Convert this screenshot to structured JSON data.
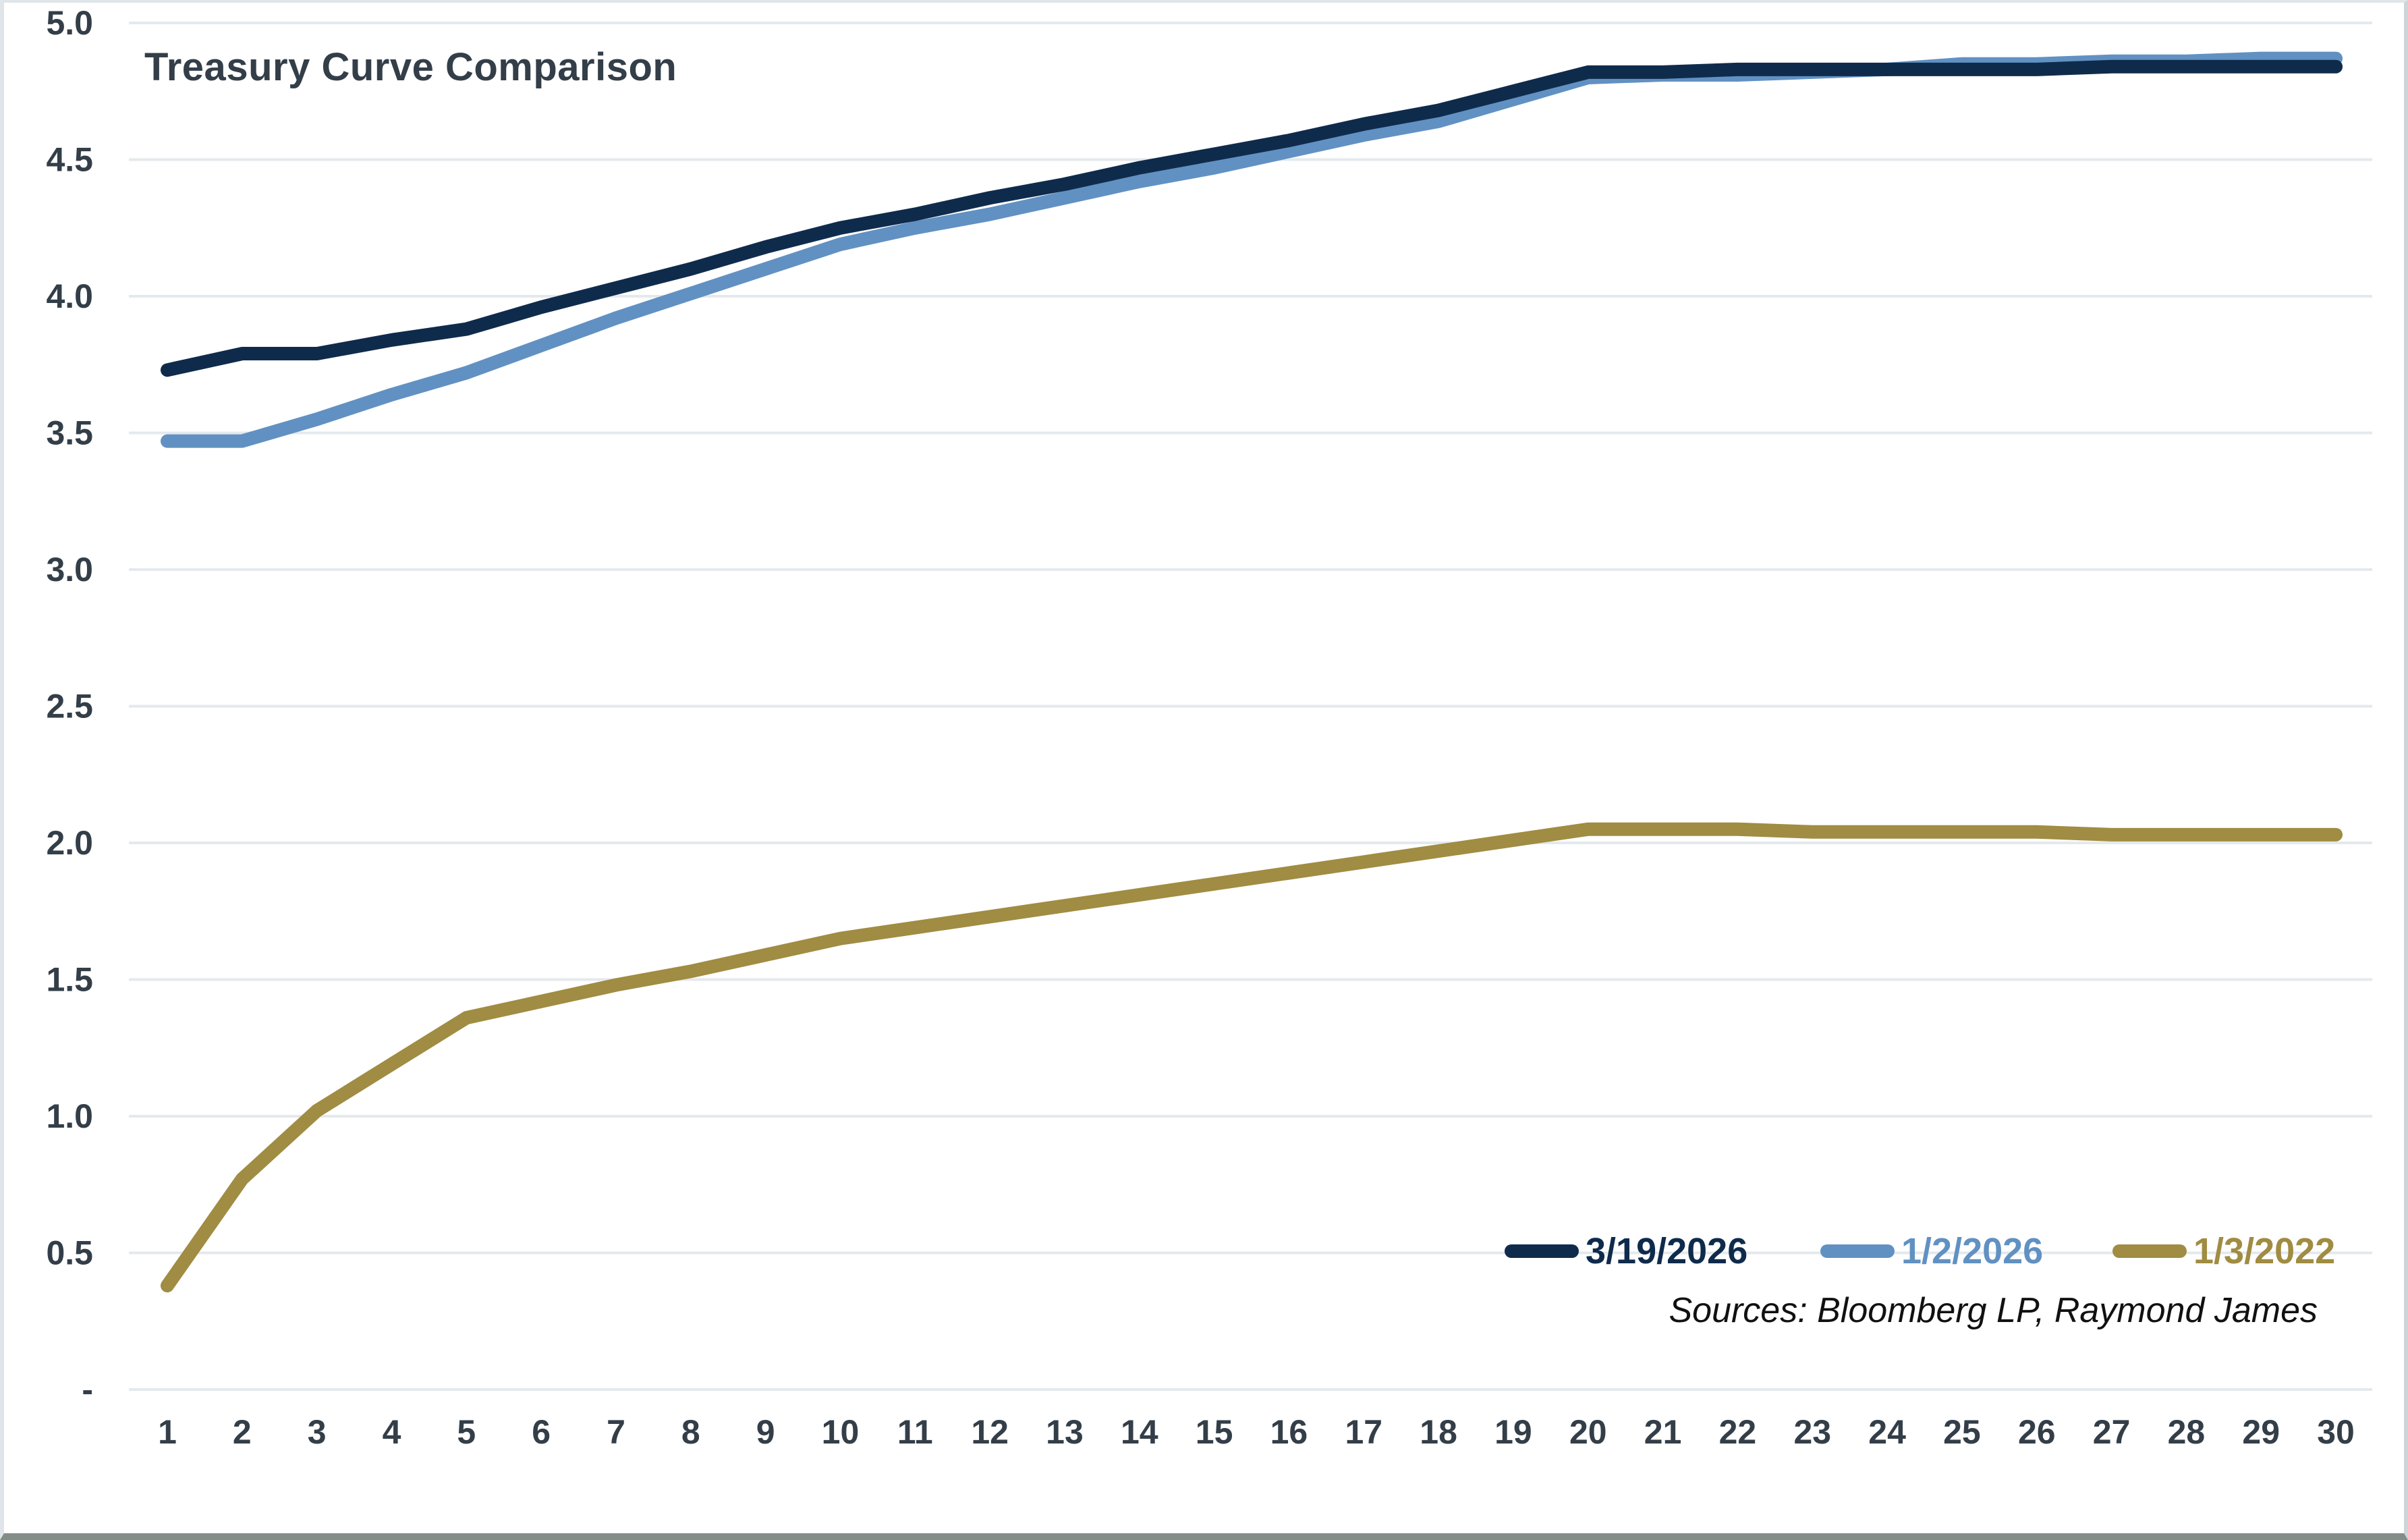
{
  "chart": {
    "title": "Treasury Curve Comparison",
    "sources": "Sources: Bloomberg LP, Raymond James"
  },
  "chart_data": {
    "type": "line",
    "title": "Treasury Curve Comparison",
    "xlabel": "",
    "ylabel": "",
    "x": [
      1,
      2,
      3,
      4,
      5,
      6,
      7,
      8,
      9,
      10,
      11,
      12,
      13,
      14,
      15,
      16,
      17,
      18,
      19,
      20,
      21,
      22,
      23,
      24,
      25,
      26,
      27,
      28,
      29,
      30
    ],
    "ylim": [
      0,
      5
    ],
    "ytick_step": 0.5,
    "ytick_labels": [
      "-",
      "0.5",
      "1.0",
      "1.5",
      "2.0",
      "2.5",
      "3.0",
      "3.5",
      "4.0",
      "4.5",
      "5.0"
    ],
    "grid": true,
    "legend_position": "bottom-right",
    "series": [
      {
        "name": "3/19/2026",
        "color": "#0f2b4c",
        "values": [
          3.73,
          3.79,
          3.79,
          3.84,
          3.88,
          3.96,
          4.03,
          4.1,
          4.18,
          4.25,
          4.3,
          4.36,
          4.41,
          4.47,
          4.52,
          4.57,
          4.63,
          4.68,
          4.75,
          4.82,
          4.82,
          4.83,
          4.83,
          4.83,
          4.83,
          4.83,
          4.84,
          4.84,
          4.84,
          4.84
        ]
      },
      {
        "name": "1/2/2026",
        "color": "#6191c2",
        "values": [
          3.47,
          3.47,
          3.55,
          3.64,
          3.72,
          3.82,
          3.92,
          4.01,
          4.1,
          4.19,
          4.25,
          4.3,
          4.36,
          4.42,
          4.47,
          4.53,
          4.59,
          4.64,
          4.72,
          4.8,
          4.81,
          4.81,
          4.82,
          4.83,
          4.85,
          4.85,
          4.86,
          4.86,
          4.87,
          4.87
        ]
      },
      {
        "name": "1/3/2022",
        "color": "#a08c42",
        "values": [
          0.38,
          0.77,
          1.02,
          1.19,
          1.36,
          1.42,
          1.48,
          1.53,
          1.59,
          1.65,
          1.69,
          1.73,
          1.77,
          1.81,
          1.85,
          1.89,
          1.93,
          1.97,
          2.01,
          2.05,
          2.05,
          2.05,
          2.04,
          2.04,
          2.04,
          2.04,
          2.03,
          2.03,
          2.03,
          2.03
        ]
      }
    ],
    "style": {
      "grid_color": "#e4e9ed",
      "text_color": "#333e48",
      "line_width": 20
    }
  }
}
